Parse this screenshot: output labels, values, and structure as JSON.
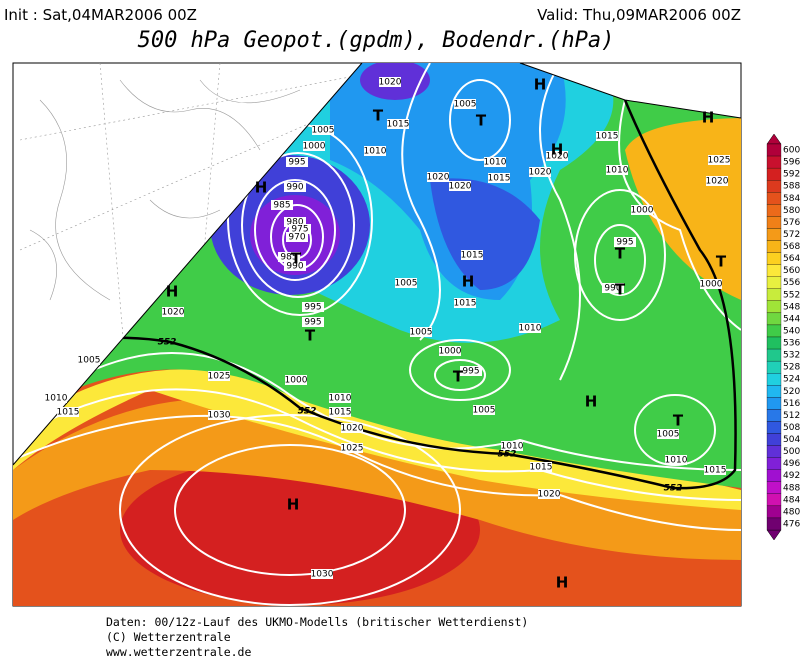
{
  "header": {
    "init": "Init : Sat,04MAR2006 00Z",
    "valid": "Valid: Thu,09MAR2006 00Z",
    "title": "500 hPa Geopot.(gpdm), Bodendr.(hPa)"
  },
  "map": {
    "isobar_labels": [
      "1020",
      "1005",
      "1015",
      "1005",
      "1000",
      "995",
      "990",
      "985",
      "980",
      "975",
      "970",
      "985",
      "990",
      "995",
      "995",
      "1010",
      "1020",
      "1020",
      "1015",
      "1010",
      "1020",
      "1020",
      "1015",
      "1010",
      "1000",
      "995",
      "990",
      "1025",
      "1020",
      "1000",
      "1015",
      "1015",
      "1005",
      "1005",
      "1000",
      "995",
      "1010",
      "1020",
      "1005",
      "1010",
      "1015",
      "1025",
      "1030",
      "1000",
      "1010",
      "1015",
      "1020",
      "1025",
      "1005",
      "1010",
      "1015",
      "1020",
      "1005",
      "1010",
      "1015",
      "1030"
    ],
    "contour_552_labels": [
      "552",
      "552",
      "552",
      "552"
    ],
    "pressure_centers": [
      "T",
      "H",
      "T",
      "H",
      "H",
      "H",
      "T",
      "T",
      "T",
      "T",
      "H",
      "T",
      "H",
      "T",
      "H",
      "T",
      "H",
      "H"
    ]
  },
  "colorbar": {
    "ticks": [
      600,
      596,
      592,
      588,
      584,
      580,
      576,
      572,
      568,
      564,
      560,
      556,
      552,
      548,
      544,
      540,
      536,
      532,
      528,
      524,
      520,
      516,
      512,
      508,
      504,
      500,
      496,
      492,
      488,
      484,
      480,
      476
    ],
    "colors": [
      "#b0003a",
      "#c8102e",
      "#d42020",
      "#dc3a1e",
      "#e4521c",
      "#ec6a1a",
      "#f08018",
      "#f49a18",
      "#f8b418",
      "#fcd020",
      "#fce83a",
      "#e8f040",
      "#c8ec3c",
      "#a0e438",
      "#70d840",
      "#40cc48",
      "#20c060",
      "#20c88c",
      "#20d0b8",
      "#20d0e0",
      "#20b8f0",
      "#2098f0",
      "#2878e8",
      "#3058e0",
      "#4040d8",
      "#6030d8",
      "#8020d8",
      "#a010d0",
      "#c010c8",
      "#d010b0",
      "#a00090",
      "#700070"
    ]
  },
  "footer": {
    "line1": "Daten: 00/12z-Lauf des UKMO-Modells (britischer Wetterdienst)",
    "line2": "(C) Wetterzentrale",
    "line3": "www.wetterzentrale.de"
  }
}
